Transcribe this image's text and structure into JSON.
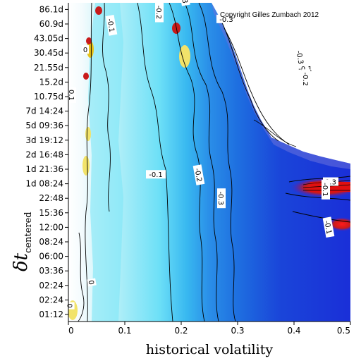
{
  "chart_data": {
    "type": "heatmap",
    "title": "",
    "xlabel": "historical volatility",
    "ylabel_main": "δt",
    "ylabel_sub": "centered",
    "copyright": "Copyright Gilles Zumbach 2012",
    "xlim": [
      0,
      0.5
    ],
    "x_ticks": [
      "0",
      "0.1",
      "0.2",
      "0.3",
      "0.4",
      "0.5"
    ],
    "y_ticks": [
      "01:12",
      "02:24",
      "02:24",
      "03:36",
      "06:00",
      "08:24",
      "12:00",
      "15:36",
      "22:48",
      "1d 08:24",
      "1d 21:36",
      "2d 16:48",
      "3d 19:12",
      "5d 09:36",
      "7d 14:24",
      "10.75d",
      "15.2d",
      "21.55d",
      "30.45d",
      "43.05d",
      "60.9d",
      "86.1d"
    ],
    "contour_labels": [
      {
        "text": "0",
        "v": 0.002,
        "row": 0.6
      },
      {
        "text": "0",
        "v": 0.04,
        "row": 2.2
      },
      {
        "text": "0",
        "v": 0.03,
        "row": 18.2
      },
      {
        "text": "0.1",
        "v": 0.005,
        "row": 15.1
      },
      {
        "text": "-0.1",
        "v": 0.075,
        "row": 19.9
      },
      {
        "text": "-0.1",
        "v": 0.155,
        "row": 9.6
      },
      {
        "text": "-0.2",
        "v": 0.16,
        "row": 20.8
      },
      {
        "text": "-0.2",
        "v": 0.23,
        "row": 9.6
      },
      {
        "text": "-0.3",
        "v": 0.28,
        "row": 20.3
      },
      {
        "text": "-0.3",
        "v": 0.27,
        "row": 8.0
      },
      {
        "text": "-0.3",
        "v": 0.41,
        "row": 17.7
      },
      {
        "text": "-0.1",
        "v": 0.42,
        "row": 16.9
      },
      {
        "text": "-0.2",
        "v": 0.42,
        "row": 16.2
      },
      {
        "text": "0.3",
        "v": 0.205,
        "row": 21.8
      },
      {
        "text": "0.3",
        "v": 0.465,
        "row": 9.1
      },
      {
        "text": "-0.1",
        "v": 0.455,
        "row": 8.6
      },
      {
        "text": "-0.1",
        "v": 0.46,
        "row": 6.0
      }
    ],
    "colors": {
      "white": "#ffffff",
      "pale_cyan": "#d6f6fb",
      "cyan": "#6ee0f7",
      "sky": "#38b8f0",
      "blue": "#1e6fe0",
      "deep_blue": "#1a2fd8",
      "yellow": "#f2e36a",
      "red": "#e01010"
    }
  }
}
